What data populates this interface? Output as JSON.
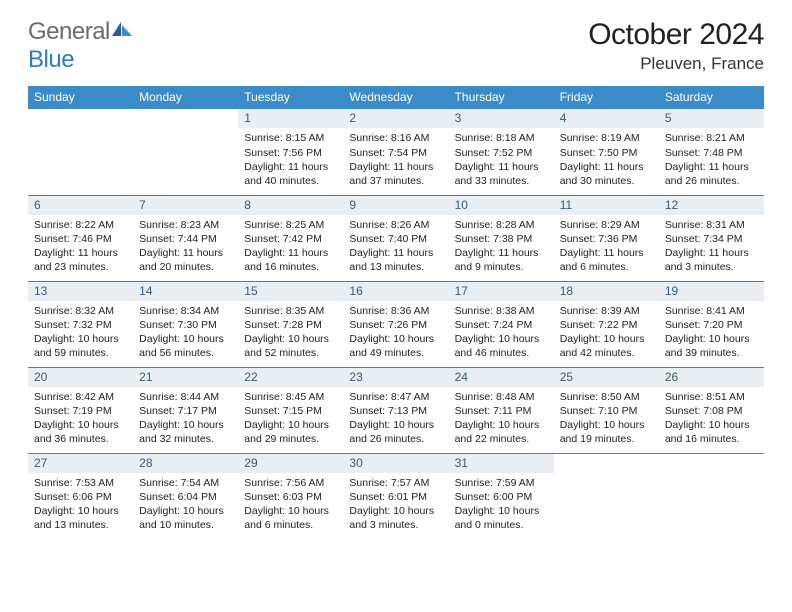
{
  "logo": {
    "main": "General",
    "sub": "Blue"
  },
  "title": "October 2024",
  "location": "Pleuven, France",
  "colors": {
    "header_bg": "#3b8bc9",
    "header_text": "#ffffff",
    "daynum_bg": "#e9eef2",
    "daynum_text": "#3a5a78",
    "rule": "#4a7fb0",
    "logo_blue": "#2f7bc4",
    "logo_gray": "#6b6b6b"
  },
  "weekdays": [
    "Sunday",
    "Monday",
    "Tuesday",
    "Wednesday",
    "Thursday",
    "Friday",
    "Saturday"
  ],
  "weeks": [
    [
      null,
      null,
      {
        "n": "1",
        "sr": "Sunrise: 8:15 AM",
        "ss": "Sunset: 7:56 PM",
        "d1": "Daylight: 11 hours",
        "d2": "and 40 minutes."
      },
      {
        "n": "2",
        "sr": "Sunrise: 8:16 AM",
        "ss": "Sunset: 7:54 PM",
        "d1": "Daylight: 11 hours",
        "d2": "and 37 minutes."
      },
      {
        "n": "3",
        "sr": "Sunrise: 8:18 AM",
        "ss": "Sunset: 7:52 PM",
        "d1": "Daylight: 11 hours",
        "d2": "and 33 minutes."
      },
      {
        "n": "4",
        "sr": "Sunrise: 8:19 AM",
        "ss": "Sunset: 7:50 PM",
        "d1": "Daylight: 11 hours",
        "d2": "and 30 minutes."
      },
      {
        "n": "5",
        "sr": "Sunrise: 8:21 AM",
        "ss": "Sunset: 7:48 PM",
        "d1": "Daylight: 11 hours",
        "d2": "and 26 minutes."
      }
    ],
    [
      {
        "n": "6",
        "sr": "Sunrise: 8:22 AM",
        "ss": "Sunset: 7:46 PM",
        "d1": "Daylight: 11 hours",
        "d2": "and 23 minutes."
      },
      {
        "n": "7",
        "sr": "Sunrise: 8:23 AM",
        "ss": "Sunset: 7:44 PM",
        "d1": "Daylight: 11 hours",
        "d2": "and 20 minutes."
      },
      {
        "n": "8",
        "sr": "Sunrise: 8:25 AM",
        "ss": "Sunset: 7:42 PM",
        "d1": "Daylight: 11 hours",
        "d2": "and 16 minutes."
      },
      {
        "n": "9",
        "sr": "Sunrise: 8:26 AM",
        "ss": "Sunset: 7:40 PM",
        "d1": "Daylight: 11 hours",
        "d2": "and 13 minutes."
      },
      {
        "n": "10",
        "sr": "Sunrise: 8:28 AM",
        "ss": "Sunset: 7:38 PM",
        "d1": "Daylight: 11 hours",
        "d2": "and 9 minutes."
      },
      {
        "n": "11",
        "sr": "Sunrise: 8:29 AM",
        "ss": "Sunset: 7:36 PM",
        "d1": "Daylight: 11 hours",
        "d2": "and 6 minutes."
      },
      {
        "n": "12",
        "sr": "Sunrise: 8:31 AM",
        "ss": "Sunset: 7:34 PM",
        "d1": "Daylight: 11 hours",
        "d2": "and 3 minutes."
      }
    ],
    [
      {
        "n": "13",
        "sr": "Sunrise: 8:32 AM",
        "ss": "Sunset: 7:32 PM",
        "d1": "Daylight: 10 hours",
        "d2": "and 59 minutes."
      },
      {
        "n": "14",
        "sr": "Sunrise: 8:34 AM",
        "ss": "Sunset: 7:30 PM",
        "d1": "Daylight: 10 hours",
        "d2": "and 56 minutes."
      },
      {
        "n": "15",
        "sr": "Sunrise: 8:35 AM",
        "ss": "Sunset: 7:28 PM",
        "d1": "Daylight: 10 hours",
        "d2": "and 52 minutes."
      },
      {
        "n": "16",
        "sr": "Sunrise: 8:36 AM",
        "ss": "Sunset: 7:26 PM",
        "d1": "Daylight: 10 hours",
        "d2": "and 49 minutes."
      },
      {
        "n": "17",
        "sr": "Sunrise: 8:38 AM",
        "ss": "Sunset: 7:24 PM",
        "d1": "Daylight: 10 hours",
        "d2": "and 46 minutes."
      },
      {
        "n": "18",
        "sr": "Sunrise: 8:39 AM",
        "ss": "Sunset: 7:22 PM",
        "d1": "Daylight: 10 hours",
        "d2": "and 42 minutes."
      },
      {
        "n": "19",
        "sr": "Sunrise: 8:41 AM",
        "ss": "Sunset: 7:20 PM",
        "d1": "Daylight: 10 hours",
        "d2": "and 39 minutes."
      }
    ],
    [
      {
        "n": "20",
        "sr": "Sunrise: 8:42 AM",
        "ss": "Sunset: 7:19 PM",
        "d1": "Daylight: 10 hours",
        "d2": "and 36 minutes."
      },
      {
        "n": "21",
        "sr": "Sunrise: 8:44 AM",
        "ss": "Sunset: 7:17 PM",
        "d1": "Daylight: 10 hours",
        "d2": "and 32 minutes."
      },
      {
        "n": "22",
        "sr": "Sunrise: 8:45 AM",
        "ss": "Sunset: 7:15 PM",
        "d1": "Daylight: 10 hours",
        "d2": "and 29 minutes."
      },
      {
        "n": "23",
        "sr": "Sunrise: 8:47 AM",
        "ss": "Sunset: 7:13 PM",
        "d1": "Daylight: 10 hours",
        "d2": "and 26 minutes."
      },
      {
        "n": "24",
        "sr": "Sunrise: 8:48 AM",
        "ss": "Sunset: 7:11 PM",
        "d1": "Daylight: 10 hours",
        "d2": "and 22 minutes."
      },
      {
        "n": "25",
        "sr": "Sunrise: 8:50 AM",
        "ss": "Sunset: 7:10 PM",
        "d1": "Daylight: 10 hours",
        "d2": "and 19 minutes."
      },
      {
        "n": "26",
        "sr": "Sunrise: 8:51 AM",
        "ss": "Sunset: 7:08 PM",
        "d1": "Daylight: 10 hours",
        "d2": "and 16 minutes."
      }
    ],
    [
      {
        "n": "27",
        "sr": "Sunrise: 7:53 AM",
        "ss": "Sunset: 6:06 PM",
        "d1": "Daylight: 10 hours",
        "d2": "and 13 minutes."
      },
      {
        "n": "28",
        "sr": "Sunrise: 7:54 AM",
        "ss": "Sunset: 6:04 PM",
        "d1": "Daylight: 10 hours",
        "d2": "and 10 minutes."
      },
      {
        "n": "29",
        "sr": "Sunrise: 7:56 AM",
        "ss": "Sunset: 6:03 PM",
        "d1": "Daylight: 10 hours",
        "d2": "and 6 minutes."
      },
      {
        "n": "30",
        "sr": "Sunrise: 7:57 AM",
        "ss": "Sunset: 6:01 PM",
        "d1": "Daylight: 10 hours",
        "d2": "and 3 minutes."
      },
      {
        "n": "31",
        "sr": "Sunrise: 7:59 AM",
        "ss": "Sunset: 6:00 PM",
        "d1": "Daylight: 10 hours",
        "d2": "and 0 minutes."
      },
      null,
      null
    ]
  ]
}
